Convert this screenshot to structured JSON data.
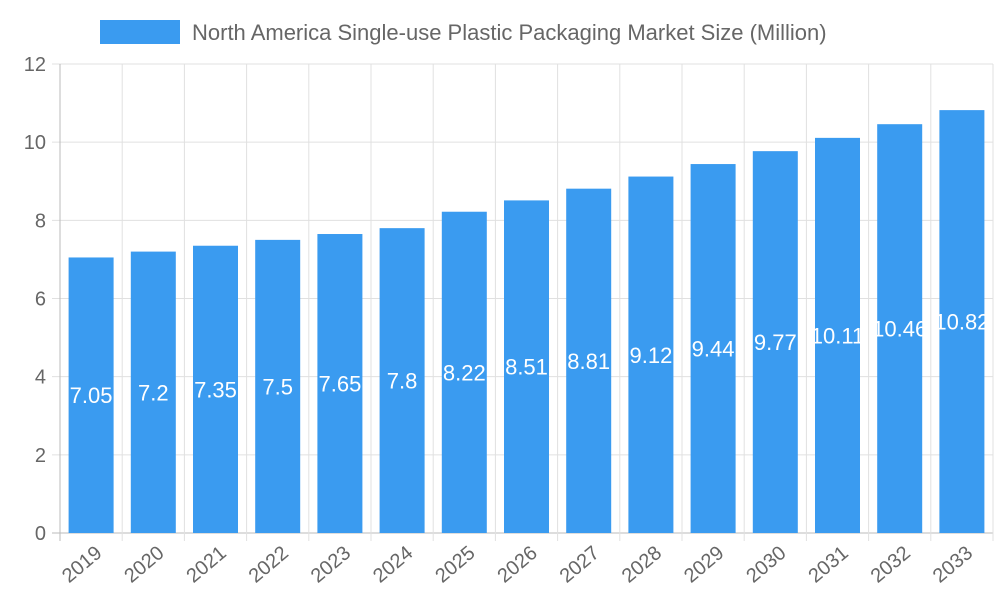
{
  "chart_data": {
    "type": "bar",
    "title": "",
    "legend": {
      "position": "top",
      "entries": [
        "North America Single-use Plastic Packaging Market Size (Million)"
      ]
    },
    "categories": [
      "2019",
      "2020",
      "2021",
      "2022",
      "2023",
      "2024",
      "2025",
      "2026",
      "2027",
      "2028",
      "2029",
      "2030",
      "2031",
      "2032",
      "2033"
    ],
    "series": [
      {
        "name": "North America Single-use Plastic Packaging Market Size (Million)",
        "values": [
          7.05,
          7.2,
          7.35,
          7.5,
          7.65,
          7.8,
          8.22,
          8.51,
          8.81,
          9.12,
          9.44,
          9.77,
          10.11,
          10.46,
          10.82
        ]
      }
    ],
    "ylim": [
      0,
      12
    ],
    "yticks": [
      0,
      2,
      4,
      6,
      8,
      10,
      12
    ],
    "grid": true,
    "xlabel": "",
    "ylabel": "",
    "colors": {
      "bar": "#3a9bf0",
      "grid": "#e0e0e0",
      "text": "#666666",
      "label": "#ffffff"
    }
  }
}
